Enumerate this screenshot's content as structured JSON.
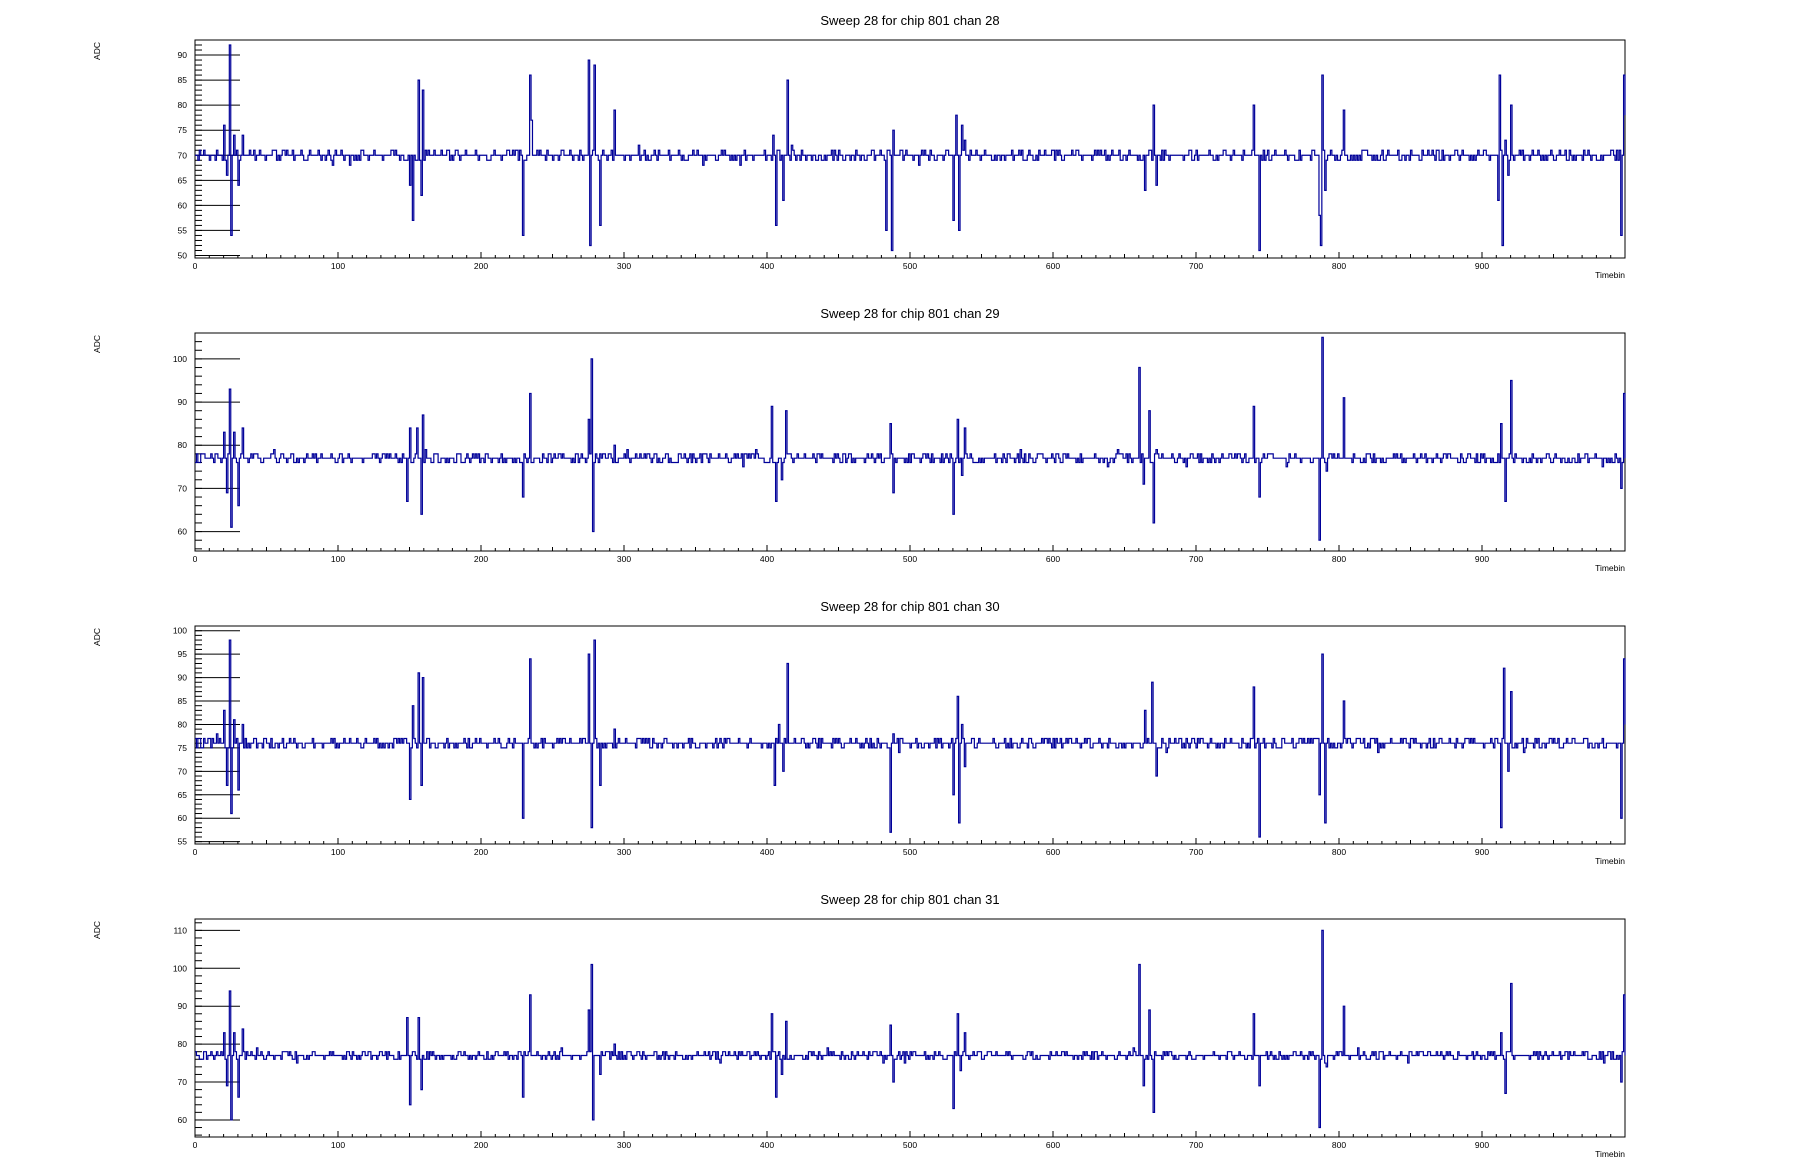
{
  "chart_data": [
    {
      "type": "line",
      "title": "Sweep 28 for chip 801 chan 28",
      "xlabel": "Timebin",
      "ylabel": "ADC",
      "xlim": [
        0,
        1000
      ],
      "ylim": [
        49.5,
        93
      ],
      "xticks": [
        0,
        100,
        200,
        300,
        400,
        500,
        600,
        700,
        800,
        900
      ],
      "yticks": [
        50,
        55,
        60,
        65,
        70,
        75,
        80,
        85,
        90
      ],
      "baseline": 70,
      "noise": 1.2,
      "series_color": "#000099",
      "series": [
        {
          "values_note": "",
          "spikes": [
            [
              20,
              76
            ],
            [
              22,
              66
            ],
            [
              24,
              92
            ],
            [
              25,
              54
            ],
            [
              27,
              74
            ],
            [
              30,
              64
            ],
            [
              33,
              74
            ],
            [
              150,
              64
            ],
            [
              152,
              57
            ],
            [
              156,
              85
            ],
            [
              158,
              62
            ],
            [
              159,
              83
            ],
            [
              229,
              54
            ],
            [
              234,
              86
            ],
            [
              235,
              77
            ],
            [
              275,
              89
            ],
            [
              276,
              52
            ],
            [
              279,
              88
            ],
            [
              283,
              56
            ],
            [
              293,
              79
            ],
            [
              404,
              74
            ],
            [
              406,
              56
            ],
            [
              411,
              61
            ],
            [
              414,
              85
            ],
            [
              417,
              72
            ],
            [
              483,
              55
            ],
            [
              487,
              51
            ],
            [
              488,
              75
            ],
            [
              530,
              57
            ],
            [
              532,
              78
            ],
            [
              534,
              55
            ],
            [
              536,
              76
            ],
            [
              538,
              73
            ],
            [
              664,
              63
            ],
            [
              670,
              80
            ],
            [
              672,
              64
            ],
            [
              740,
              80
            ],
            [
              744,
              51
            ],
            [
              786,
              58
            ],
            [
              787,
              52
            ],
            [
              788,
              86
            ],
            [
              790,
              63
            ],
            [
              803,
              79
            ],
            [
              911,
              61
            ],
            [
              912,
              86
            ],
            [
              914,
              52
            ],
            [
              916,
              73
            ],
            [
              918,
              66
            ],
            [
              920,
              80
            ],
            [
              997,
              54
            ],
            [
              999,
              86
            ],
            [
              1000,
              78
            ]
          ]
        }
      ]
    },
    {
      "type": "line",
      "title": "Sweep 28 for chip 801 chan 29",
      "xlabel": "Timebin",
      "ylabel": "ADC",
      "xlim": [
        0,
        1000
      ],
      "ylim": [
        55.5,
        106
      ],
      "xticks": [
        0,
        100,
        200,
        300,
        400,
        500,
        600,
        700,
        800,
        900
      ],
      "yticks": [
        60,
        70,
        80,
        90,
        100
      ],
      "baseline": 77,
      "noise": 1.3,
      "series_color": "#000099",
      "series": [
        {
          "values_note": "",
          "spikes": [
            [
              20,
              83
            ],
            [
              22,
              69
            ],
            [
              24,
              93
            ],
            [
              25,
              61
            ],
            [
              27,
              83
            ],
            [
              30,
              66
            ],
            [
              33,
              84
            ],
            [
              148,
              67
            ],
            [
              150,
              84
            ],
            [
              155,
              84
            ],
            [
              158,
              64
            ],
            [
              159,
              87
            ],
            [
              229,
              68
            ],
            [
              234,
              92
            ],
            [
              275,
              86
            ],
            [
              277,
              100
            ],
            [
              278,
              60
            ],
            [
              283,
              78
            ],
            [
              293,
              80
            ],
            [
              403,
              89
            ],
            [
              406,
              67
            ],
            [
              410,
              72
            ],
            [
              413,
              88
            ],
            [
              486,
              85
            ],
            [
              488,
              69
            ],
            [
              530,
              64
            ],
            [
              533,
              86
            ],
            [
              536,
              73
            ],
            [
              538,
              84
            ],
            [
              660,
              98
            ],
            [
              663,
              71
            ],
            [
              667,
              88
            ],
            [
              670,
              62
            ],
            [
              740,
              89
            ],
            [
              744,
              68
            ],
            [
              786,
              58
            ],
            [
              788,
              105
            ],
            [
              791,
              74
            ],
            [
              803,
              91
            ],
            [
              913,
              85
            ],
            [
              916,
              67
            ],
            [
              920,
              95
            ],
            [
              922,
              76
            ],
            [
              997,
              70
            ],
            [
              999,
              92
            ],
            [
              1000,
              77
            ]
          ]
        }
      ]
    },
    {
      "type": "line",
      "title": "Sweep 28 for chip 801 chan 30",
      "xlabel": "Timebin",
      "ylabel": "ADC",
      "xlim": [
        0,
        1000
      ],
      "ylim": [
        54.5,
        101
      ],
      "xticks": [
        0,
        100,
        200,
        300,
        400,
        500,
        600,
        700,
        800,
        900
      ],
      "yticks": [
        55,
        60,
        65,
        70,
        75,
        80,
        85,
        90,
        95,
        100
      ],
      "baseline": 76,
      "noise": 1.2,
      "series_color": "#000099",
      "series": [
        {
          "values_note": "",
          "spikes": [
            [
              20,
              83
            ],
            [
              22,
              67
            ],
            [
              24,
              98
            ],
            [
              25,
              61
            ],
            [
              27,
              81
            ],
            [
              30,
              66
            ],
            [
              33,
              80
            ],
            [
              150,
              64
            ],
            [
              152,
              84
            ],
            [
              156,
              91
            ],
            [
              158,
              67
            ],
            [
              159,
              90
            ],
            [
              229,
              60
            ],
            [
              234,
              94
            ],
            [
              275,
              95
            ],
            [
              277,
              58
            ],
            [
              279,
              98
            ],
            [
              283,
              67
            ],
            [
              293,
              79
            ],
            [
              405,
              67
            ],
            [
              408,
              80
            ],
            [
              411,
              70
            ],
            [
              414,
              93
            ],
            [
              486,
              57
            ],
            [
              488,
              78
            ],
            [
              530,
              65
            ],
            [
              533,
              86
            ],
            [
              534,
              59
            ],
            [
              536,
              80
            ],
            [
              538,
              71
            ],
            [
              664,
              83
            ],
            [
              669,
              89
            ],
            [
              672,
              69
            ],
            [
              740,
              88
            ],
            [
              744,
              56
            ],
            [
              786,
              65
            ],
            [
              788,
              95
            ],
            [
              790,
              59
            ],
            [
              803,
              85
            ],
            [
              913,
              58
            ],
            [
              915,
              92
            ],
            [
              918,
              70
            ],
            [
              920,
              87
            ],
            [
              997,
              60
            ],
            [
              999,
              94
            ],
            [
              1000,
              80
            ]
          ]
        }
      ]
    },
    {
      "type": "line",
      "title": "Sweep 28 for chip 801 chan 31",
      "xlabel": "Timebin",
      "ylabel": "ADC",
      "xlim": [
        0,
        1000
      ],
      "ylim": [
        55.5,
        113
      ],
      "xticks": [
        0,
        100,
        200,
        300,
        400,
        500,
        600,
        700,
        800,
        900
      ],
      "yticks": [
        60,
        70,
        80,
        90,
        100,
        110
      ],
      "baseline": 77,
      "noise": 1.3,
      "series_color": "#000099",
      "series": [
        {
          "values_note": "",
          "spikes": [
            [
              20,
              83
            ],
            [
              22,
              69
            ],
            [
              24,
              94
            ],
            [
              25,
              60
            ],
            [
              27,
              83
            ],
            [
              30,
              66
            ],
            [
              33,
              84
            ],
            [
              148,
              87
            ],
            [
              150,
              64
            ],
            [
              156,
              87
            ],
            [
              158,
              68
            ],
            [
              229,
              66
            ],
            [
              234,
              93
            ],
            [
              275,
              89
            ],
            [
              277,
              101
            ],
            [
              278,
              60
            ],
            [
              283,
              72
            ],
            [
              293,
              80
            ],
            [
              403,
              88
            ],
            [
              406,
              66
            ],
            [
              410,
              72
            ],
            [
              413,
              86
            ],
            [
              486,
              85
            ],
            [
              488,
              70
            ],
            [
              530,
              63
            ],
            [
              533,
              88
            ],
            [
              535,
              73
            ],
            [
              538,
              83
            ],
            [
              660,
              101
            ],
            [
              663,
              69
            ],
            [
              667,
              89
            ],
            [
              670,
              62
            ],
            [
              740,
              88
            ],
            [
              744,
              69
            ],
            [
              786,
              58
            ],
            [
              788,
              110
            ],
            [
              791,
              74
            ],
            [
              803,
              90
            ],
            [
              913,
              83
            ],
            [
              916,
              67
            ],
            [
              920,
              96
            ],
            [
              922,
              76
            ],
            [
              997,
              70
            ],
            [
              999,
              93
            ],
            [
              1000,
              77
            ]
          ]
        }
      ]
    }
  ]
}
